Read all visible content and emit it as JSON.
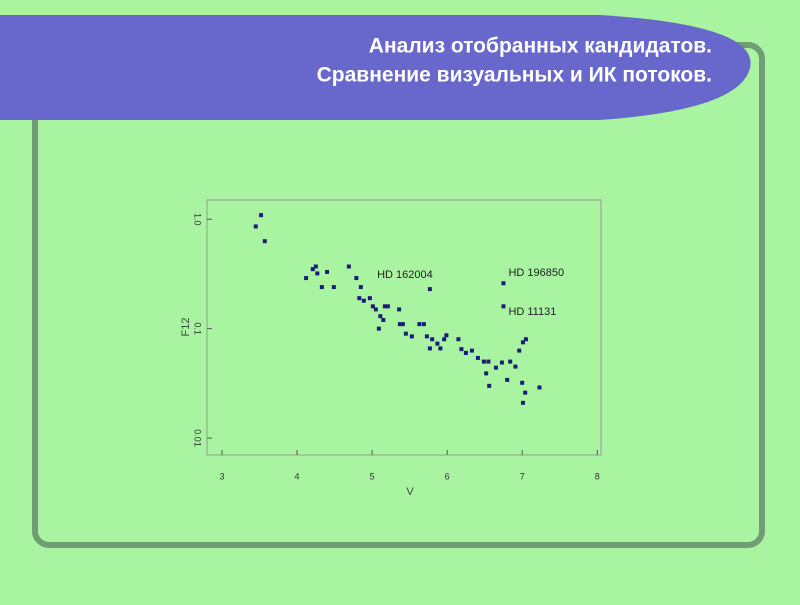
{
  "chart_data": {
    "type": "scatter",
    "title": [
      "Анализ отобранных кандидатов.",
      "Сравнение визуальных и ИК потоков."
    ],
    "x_label": "V",
    "y_label": "F12",
    "color": "#1c1c78",
    "yscale": "log",
    "xlim": [
      2.8,
      8.05
    ],
    "ylim": [
      0.007,
      1.5
    ],
    "xticks": [
      3,
      4,
      5,
      6,
      7,
      8
    ],
    "yticks": [
      {
        "value": 0.01,
        "label": "0.01"
      },
      {
        "value": 0.1,
        "label": "0.1"
      },
      {
        "value": 1,
        "label": "1.0"
      }
    ],
    "x": [
      3.45,
      3.52,
      3.57,
      4.12,
      4.21,
      4.25,
      4.27,
      4.33,
      4.4,
      4.49,
      4.69,
      4.79,
      4.85,
      4.83,
      4.89,
      4.97,
      5.01,
      5.05,
      5.11,
      5.17,
      5.21,
      5.15,
      5.09,
      5.36,
      5.37,
      5.41,
      5.45,
      5.53,
      5.63,
      5.69,
      5.73,
      5.8,
      5.77,
      5.87,
      5.91,
      5.96,
      5.99,
      6.15,
      6.19,
      6.25,
      6.33,
      6.41,
      6.49,
      6.55,
      6.52,
      6.56,
      6.65,
      6.73,
      6.8,
      6.84,
      6.91,
      6.96,
      7.01,
      7.05,
      7.0,
      7.04,
      7.01,
      7.23,
      5.77,
      6.75,
      6.75
    ],
    "values": [
      0.86,
      1.09,
      0.63,
      0.29,
      0.35,
      0.37,
      0.32,
      0.24,
      0.33,
      0.24,
      0.37,
      0.29,
      0.24,
      0.19,
      0.18,
      0.19,
      0.16,
      0.15,
      0.13,
      0.16,
      0.16,
      0.12,
      0.1,
      0.15,
      0.11,
      0.11,
      0.09,
      0.085,
      0.11,
      0.11,
      0.085,
      0.08,
      0.066,
      0.073,
      0.066,
      0.08,
      0.087,
      0.08,
      0.065,
      0.06,
      0.063,
      0.054,
      0.05,
      0.05,
      0.039,
      0.03,
      0.044,
      0.049,
      0.034,
      0.05,
      0.045,
      0.063,
      0.075,
      0.08,
      0.032,
      0.026,
      0.021,
      0.029,
      0.23,
      0.26,
      0.16
    ],
    "annotations": [
      {
        "text": "HD 162004",
        "x": 5.77,
        "y": 0.23
      },
      {
        "text": "HD 196850",
        "x": 6.75,
        "y": 0.26
      },
      {
        "text": "HD 11131",
        "x": 6.75,
        "y": 0.16
      }
    ]
  }
}
